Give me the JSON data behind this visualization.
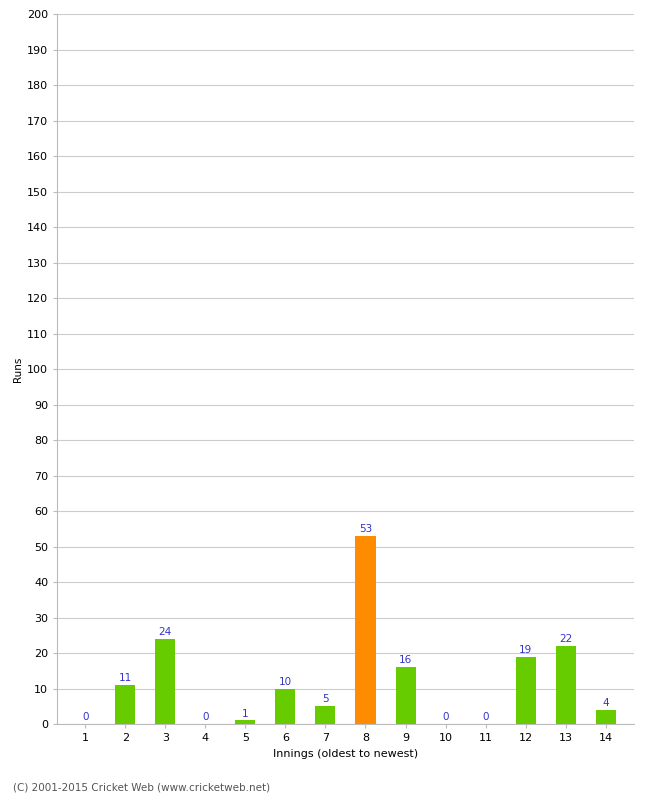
{
  "xlabel": "Innings (oldest to newest)",
  "ylabel": "Runs",
  "categories": [
    1,
    2,
    3,
    4,
    5,
    6,
    7,
    8,
    9,
    10,
    11,
    12,
    13,
    14
  ],
  "values": [
    0,
    11,
    24,
    0,
    1,
    10,
    5,
    53,
    16,
    0,
    0,
    19,
    22,
    4
  ],
  "bar_colors": [
    "#66cc00",
    "#66cc00",
    "#66cc00",
    "#66cc00",
    "#66cc00",
    "#66cc00",
    "#66cc00",
    "#ff8c00",
    "#66cc00",
    "#66cc00",
    "#66cc00",
    "#66cc00",
    "#66cc00",
    "#66cc00"
  ],
  "ylim": [
    0,
    200
  ],
  "yticks": [
    0,
    10,
    20,
    30,
    40,
    50,
    60,
    70,
    80,
    90,
    100,
    110,
    120,
    130,
    140,
    150,
    160,
    170,
    180,
    190,
    200
  ],
  "label_color": "#3333cc",
  "label_fontsize": 7.5,
  "axis_fontsize": 8,
  "ylabel_fontsize": 7.5,
  "xlabel_fontsize": 8,
  "footer": "(C) 2001-2015 Cricket Web (www.cricketweb.net)",
  "footer_fontsize": 7.5,
  "background_color": "#ffffff",
  "grid_color": "#cccccc",
  "bar_width": 0.5
}
